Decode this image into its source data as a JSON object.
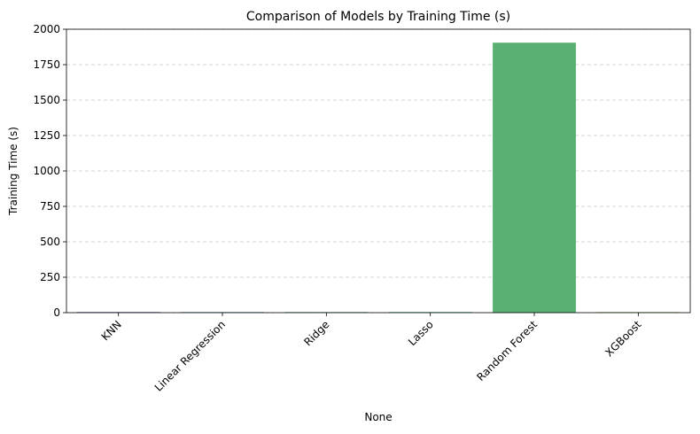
{
  "chart_data": {
    "type": "bar",
    "title": "Comparison of Models by Training Time (s)",
    "xlabel": "None",
    "ylabel": "Training Time (s)",
    "categories": [
      "KNN",
      "Linear Regression",
      "Ridge",
      "Lasso",
      "Random Forest",
      "XGBoost"
    ],
    "values": [
      4,
      1,
      3,
      4,
      1905,
      4
    ],
    "colors": [
      "#3b3a7a",
      "#2b6f8c",
      "#2d8b8a",
      "#36a57c",
      "#59b072",
      "#94c85a"
    ],
    "ylim": [
      0,
      2000
    ],
    "yticks": [
      0,
      250,
      500,
      750,
      1000,
      1250,
      1500,
      1750,
      2000
    ],
    "grid": "y-dashed"
  }
}
